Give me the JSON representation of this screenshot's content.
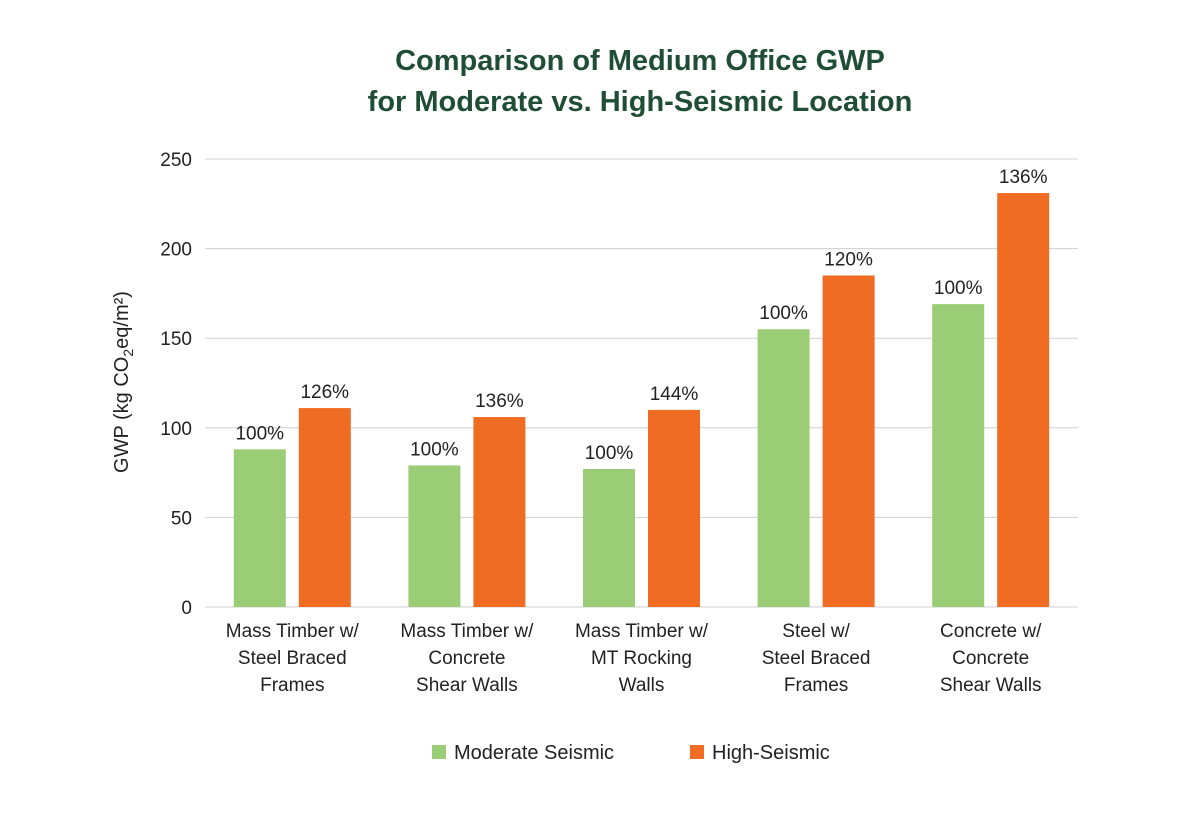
{
  "chart_data": {
    "type": "bar",
    "title_lines": [
      "Comparison of Medium Office GWP",
      "for Moderate vs. High-Seismic Location"
    ],
    "ylabel": {
      "before_sub": "GWP (kg CO",
      "sub": "2",
      "after_sub": "eq/m²)"
    },
    "ylim": [
      0,
      250
    ],
    "yticks": [
      0,
      50,
      100,
      150,
      200,
      250
    ],
    "grid": true,
    "legend_position": "bottom-center",
    "categories": [
      [
        "Mass Timber w/",
        "Steel Braced",
        "Frames"
      ],
      [
        "Mass Timber w/",
        "Concrete",
        "Shear Walls"
      ],
      [
        "Mass Timber w/",
        "MT Rocking",
        "Walls"
      ],
      [
        "Steel w/",
        "Steel Braced",
        "Frames"
      ],
      [
        "Concrete w/",
        "Concrete",
        "Shear Walls"
      ]
    ],
    "series": [
      {
        "name": "Moderate Seismic",
        "color": "#9bcd76",
        "values": [
          88,
          79,
          77,
          155,
          169
        ],
        "labels": [
          "100%",
          "100%",
          "100%",
          "100%",
          "100%"
        ]
      },
      {
        "name": "High-Seismic",
        "color": "#f06c23",
        "values": [
          111,
          106,
          110,
          185,
          231
        ],
        "labels": [
          "126%",
          "136%",
          "144%",
          "120%",
          "136%"
        ]
      }
    ]
  }
}
